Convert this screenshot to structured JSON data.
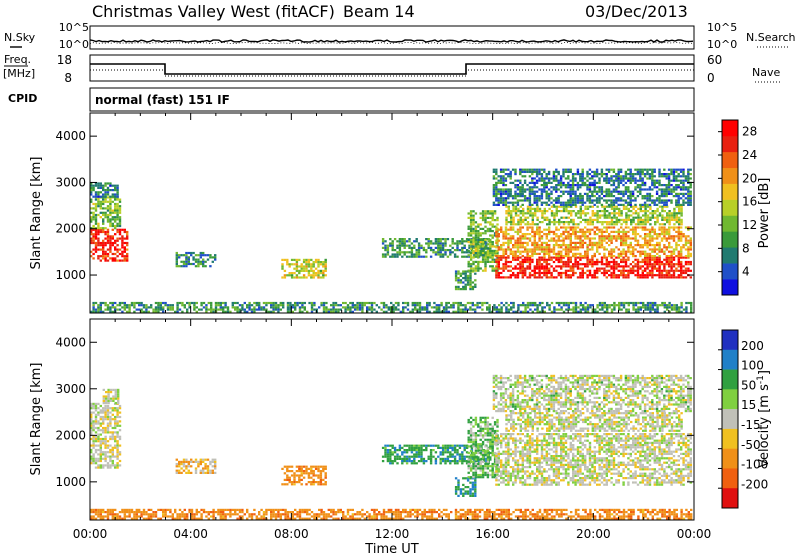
{
  "header": {
    "station": "Christmas Valley West (fitACF)",
    "beam": "Beam 14",
    "date": "03/Dec/2013"
  },
  "left_labels": {
    "nsky": "N.Sky",
    "freq_top": "Freq.",
    "freq_unit": "[MHz]",
    "cpid": "CPID"
  },
  "right_labels": {
    "nsearch": "N.Search",
    "nave": "Nave"
  },
  "noise_panel": {
    "left_ticks": [
      "10^5",
      "10^0"
    ],
    "right_ticks": [
      "10^5",
      "10^0"
    ]
  },
  "freq_panel": {
    "left_ticks": [
      "18",
      "8"
    ],
    "right_ticks": [
      "60",
      "0"
    ]
  },
  "cpid_text": "normal (fast) 151 IF",
  "ylabel": "Slant Range [km]",
  "xlabel": "Time UT",
  "chart_data": [
    {
      "type": "heatmap",
      "name": "power",
      "x_ticks": [
        "00:00",
        "04:00",
        "08:00",
        "12:00",
        "16:00",
        "20:00",
        "00:00"
      ],
      "y_ticks": [
        "1000",
        "2000",
        "3000",
        "4000"
      ],
      "ylim": [
        180,
        4500
      ],
      "colorbar": {
        "label": "Power [dB]",
        "ticks": [
          "4",
          "8",
          "12",
          "16",
          "20",
          "24",
          "28"
        ],
        "range": [
          0,
          30
        ],
        "colors": [
          "#1010e0",
          "#2050c8",
          "#207a70",
          "#3a9a3a",
          "#70b830",
          "#b8d028",
          "#f0c020",
          "#f09018",
          "#f06010",
          "#e82010",
          "#ff0000"
        ]
      },
      "regions": [
        {
          "t": [
            0.0,
            1.5
          ],
          "r": [
            1300,
            2000
          ],
          "level": 27
        },
        {
          "t": [
            0.0,
            1.2
          ],
          "r": [
            2000,
            2700
          ],
          "level": 12
        },
        {
          "t": [
            0.0,
            1.1
          ],
          "r": [
            2700,
            3000
          ],
          "level": 6
        },
        {
          "t": [
            3.4,
            5.0
          ],
          "r": [
            1200,
            1500
          ],
          "level": 7
        },
        {
          "t": [
            7.6,
            9.4
          ],
          "r": [
            950,
            1350
          ],
          "level": 15
        },
        {
          "t": [
            11.6,
            15.8
          ],
          "r": [
            1400,
            1800
          ],
          "level": 8
        },
        {
          "t": [
            14.5,
            15.3
          ],
          "r": [
            700,
            1100
          ],
          "level": 9
        },
        {
          "t": [
            15.0,
            16.2
          ],
          "r": [
            1100,
            2400
          ],
          "level": 12
        },
        {
          "t": [
            16.1,
            23.9
          ],
          "r": [
            950,
            1400
          ],
          "level": 28
        },
        {
          "t": [
            16.1,
            23.9
          ],
          "r": [
            1400,
            2050
          ],
          "level": 20
        },
        {
          "t": [
            16.5,
            23.5
          ],
          "r": [
            2100,
            2500
          ],
          "level": 14
        },
        {
          "t": [
            16.0,
            23.9
          ],
          "r": [
            2500,
            3300
          ],
          "level": 6
        },
        {
          "t": [
            0.0,
            23.9
          ],
          "r": [
            220,
            420
          ],
          "level": 8
        }
      ]
    },
    {
      "type": "heatmap",
      "name": "velocity",
      "x_ticks": [
        "00:00",
        "04:00",
        "08:00",
        "12:00",
        "16:00",
        "20:00",
        "00:00"
      ],
      "y_ticks": [
        "1000",
        "2000",
        "3000",
        "4000"
      ],
      "ylim": [
        180,
        4500
      ],
      "colorbar": {
        "label": "Velocity [m s^-1]",
        "ticks": [
          "200",
          "100",
          "50",
          "15",
          "-15",
          "-50",
          "-100",
          "-200"
        ],
        "colors": [
          "#2030c0",
          "#2080c8",
          "#30a040",
          "#80d040",
          "#c0c0b8",
          "#f0c020",
          "#f09018",
          "#f06010",
          "#e01010"
        ]
      },
      "regions": [
        {
          "t": [
            0.0,
            1.2
          ],
          "r": [
            1300,
            2700
          ],
          "v": 0
        },
        {
          "t": [
            0.5,
            1.1
          ],
          "r": [
            2700,
            3000
          ],
          "v": 0
        },
        {
          "t": [
            3.4,
            5.0
          ],
          "r": [
            1200,
            1500
          ],
          "v": -30
        },
        {
          "t": [
            7.6,
            9.4
          ],
          "r": [
            950,
            1350
          ],
          "v": -60
        },
        {
          "t": [
            11.6,
            15.8
          ],
          "r": [
            1400,
            1800
          ],
          "v": 60
        },
        {
          "t": [
            14.5,
            15.3
          ],
          "r": [
            700,
            1100
          ],
          "v": 80
        },
        {
          "t": [
            15.0,
            16.2
          ],
          "r": [
            1100,
            2400
          ],
          "v": 30
        },
        {
          "t": [
            16.1,
            23.9
          ],
          "r": [
            950,
            2050
          ],
          "v": 0
        },
        {
          "t": [
            16.5,
            23.5
          ],
          "r": [
            2100,
            2500
          ],
          "v": 0
        },
        {
          "t": [
            16.0,
            23.9
          ],
          "r": [
            2500,
            3300
          ],
          "v": 5
        },
        {
          "t": [
            0.0,
            23.9
          ],
          "r": [
            220,
            420
          ],
          "v": -60
        }
      ]
    }
  ]
}
